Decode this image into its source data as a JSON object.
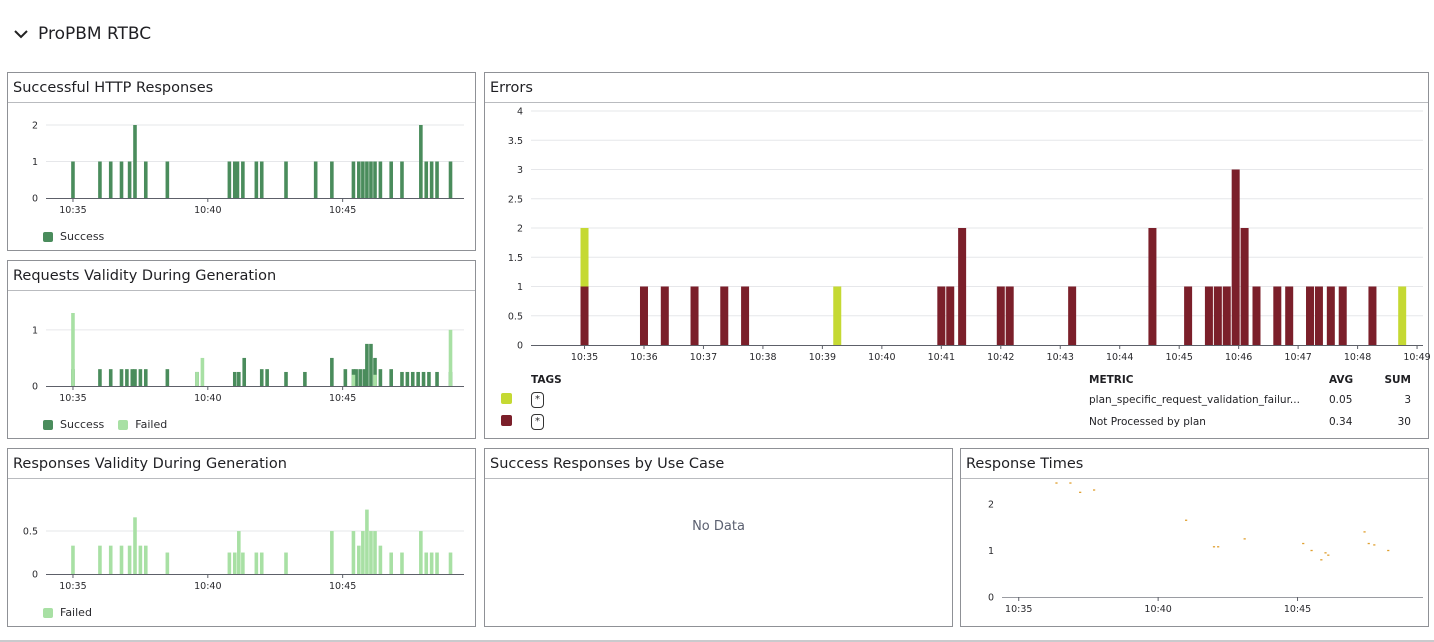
{
  "group": {
    "title": "ProPBM RTBC"
  },
  "widgets": {
    "http": {
      "title": "Successful HTTP Responses",
      "legend": [
        {
          "label": "Success",
          "color": "#4a8c5c"
        }
      ]
    },
    "req_validity": {
      "title": "Requests Validity During Generation",
      "legend": [
        {
          "label": "Success",
          "color": "#4a8c5c"
        },
        {
          "label": "Failed",
          "color": "#a8e0a4"
        }
      ]
    },
    "resp_validity": {
      "title": "Responses Validity During Generation",
      "legend": [
        {
          "label": "Failed",
          "color": "#a8e0a4"
        }
      ]
    },
    "errors": {
      "title": "Errors",
      "table": {
        "headers": {
          "tags": "TAGS",
          "metric": "METRIC",
          "avg": "AVG",
          "sum": "SUM"
        },
        "rows": [
          {
            "color": "#c5d933",
            "tag": "*",
            "metric": "plan_specific_request_validation_failur...",
            "avg": "0.05",
            "sum": "3"
          },
          {
            "color": "#7b1f2a",
            "tag": "*",
            "metric": "Not Processed by plan",
            "avg": "0.34",
            "sum": "30"
          }
        ]
      }
    },
    "use_case": {
      "title": "Success Responses by Use Case",
      "empty_text": "No Data"
    },
    "resp_times": {
      "title": "Response Times"
    }
  },
  "chart_data": [
    {
      "id": "http",
      "type": "bar",
      "title": "Successful HTTP Responses",
      "x_unit": "minutes (10:34–10:49)",
      "x_ticks": [
        {
          "x": 35,
          "label": "10:35"
        },
        {
          "x": 40,
          "label": "10:40"
        },
        {
          "x": 45,
          "label": "10:45"
        }
      ],
      "ylim": [
        0,
        2
      ],
      "y_ticks": [
        "0",
        "1",
        "2"
      ],
      "grid": true,
      "legend_position": "bottom-left",
      "series": [
        {
          "name": "Success",
          "color": "#4a8c5c",
          "x": [
            35.0,
            36.0,
            36.4,
            36.8,
            37.1,
            37.3,
            37.7,
            38.5,
            40.8,
            41.0,
            41.1,
            41.3,
            41.8,
            42.0,
            42.9,
            44.0,
            44.6,
            45.4,
            45.6,
            45.75,
            45.9,
            46.05,
            46.2,
            46.4,
            46.8,
            47.2,
            47.9,
            48.1,
            48.3,
            48.5,
            49.0
          ],
          "values": [
            1,
            1,
            1,
            1,
            1,
            2,
            1,
            1,
            1,
            1,
            1,
            1,
            1,
            1,
            1,
            1,
            1,
            1,
            1,
            1,
            1,
            1,
            1,
            1,
            1,
            1,
            2,
            1,
            1,
            1,
            1
          ]
        }
      ]
    },
    {
      "id": "req_validity",
      "type": "bar",
      "title": "Requests Validity During Generation",
      "x_unit": "minutes (10:34–10:49)",
      "x_ticks": [
        {
          "x": 35,
          "label": "10:35"
        },
        {
          "x": 40,
          "label": "10:40"
        },
        {
          "x": 45,
          "label": "10:45"
        }
      ],
      "ylim": [
        0,
        1.3
      ],
      "y_ticks": [
        "0",
        "1"
      ],
      "grid": true,
      "legend_position": "bottom-left",
      "series": [
        {
          "name": "Success",
          "color": "#4a8c5c",
          "x": [
            35.0,
            36.0,
            36.4,
            36.8,
            37.0,
            37.2,
            37.3,
            37.5,
            37.7,
            38.5,
            39.6,
            41.0,
            41.15,
            41.35,
            42.0,
            42.2,
            42.9,
            43.6,
            44.6,
            45.1,
            45.4,
            45.5,
            45.65,
            45.8,
            45.9,
            46.05,
            46.2,
            46.4,
            46.8,
            47.2,
            47.4,
            47.6,
            47.8,
            48.0,
            48.2,
            48.5,
            49.0
          ],
          "values": [
            0.3,
            0.3,
            0.3,
            0.3,
            0.3,
            0.3,
            0.3,
            0.3,
            0.3,
            0.3,
            0.25,
            0.25,
            0.25,
            0.5,
            0.3,
            0.3,
            0.25,
            0.25,
            0.5,
            0.3,
            0.3,
            0.3,
            0.3,
            0.3,
            0.75,
            0.75,
            0.5,
            0.3,
            0.3,
            0.25,
            0.25,
            0.25,
            0.25,
            0.25,
            0.25,
            0.25,
            0.25
          ]
        },
        {
          "name": "Failed",
          "color": "#a8e0a4",
          "x": [
            35.0,
            39.6,
            39.8,
            45.4,
            46.2,
            49.0
          ],
          "values": [
            1.3,
            0.25,
            0.5,
            0.2,
            0.2,
            1.0
          ]
        }
      ]
    },
    {
      "id": "resp_validity",
      "type": "bar",
      "title": "Responses Validity During Generation",
      "x_unit": "minutes (10:34–10:49)",
      "x_ticks": [
        {
          "x": 35,
          "label": "10:35"
        },
        {
          "x": 40,
          "label": "10:40"
        },
        {
          "x": 45,
          "label": "10:45"
        }
      ],
      "ylim": [
        0,
        0.85
      ],
      "y_ticks": [
        "0",
        "0.5"
      ],
      "grid": true,
      "legend_position": "bottom-left",
      "series": [
        {
          "name": "Failed",
          "color": "#a8e0a4",
          "x": [
            35.0,
            36.0,
            36.4,
            36.8,
            37.1,
            37.3,
            37.5,
            37.7,
            38.5,
            40.8,
            41.0,
            41.15,
            41.3,
            41.8,
            42.0,
            42.9,
            44.6,
            45.4,
            45.6,
            45.75,
            45.9,
            46.05,
            46.2,
            46.4,
            46.8,
            47.2,
            47.9,
            48.1,
            48.3,
            48.5,
            49.0
          ],
          "values": [
            0.33,
            0.33,
            0.33,
            0.33,
            0.33,
            0.66,
            0.33,
            0.33,
            0.25,
            0.25,
            0.25,
            0.5,
            0.25,
            0.25,
            0.25,
            0.25,
            0.5,
            0.5,
            0.33,
            0.5,
            0.75,
            0.5,
            0.5,
            0.33,
            0.25,
            0.25,
            0.5,
            0.25,
            0.25,
            0.25,
            0.25
          ]
        }
      ]
    },
    {
      "id": "errors",
      "type": "bar",
      "title": "Errors",
      "x_unit": "minutes (10:34.1–10:49)",
      "x_ticks": [
        {
          "x": 35,
          "label": "10:35"
        },
        {
          "x": 36,
          "label": "10:36"
        },
        {
          "x": 37,
          "label": "10:37"
        },
        {
          "x": 38,
          "label": "10:38"
        },
        {
          "x": 39,
          "label": "10:39"
        },
        {
          "x": 40,
          "label": "10:40"
        },
        {
          "x": 41,
          "label": "10:41"
        },
        {
          "x": 42,
          "label": "10:42"
        },
        {
          "x": 43,
          "label": "10:43"
        },
        {
          "x": 44,
          "label": "10:44"
        },
        {
          "x": 45,
          "label": "10:45"
        },
        {
          "x": 46,
          "label": "10:46"
        },
        {
          "x": 47,
          "label": "10:47"
        },
        {
          "x": 48,
          "label": "10:48"
        },
        {
          "x": 49,
          "label": "10:49"
        }
      ],
      "ylim": [
        0,
        4
      ],
      "y_ticks": [
        "0",
        "0.5",
        "1",
        "1.5",
        "2",
        "2.5",
        "3",
        "3.5",
        "4"
      ],
      "grid": true,
      "legend_position": "bottom",
      "stacked": true,
      "series": [
        {
          "name": "Not Processed by plan",
          "color": "#7b1f2a",
          "x": [
            35.0,
            36.0,
            36.35,
            36.85,
            37.35,
            37.7,
            41.0,
            41.15,
            41.35,
            42.0,
            42.15,
            43.2,
            44.55,
            45.15,
            45.5,
            45.65,
            45.8,
            45.95,
            46.1,
            46.3,
            46.65,
            46.85,
            47.2,
            47.35,
            47.55,
            47.75,
            48.25
          ],
          "values": [
            1,
            1,
            1,
            1,
            1,
            1,
            1,
            1,
            2,
            1,
            1,
            1,
            2,
            1,
            1,
            1,
            1,
            3,
            2,
            1,
            1,
            1,
            1,
            1,
            1,
            1,
            1
          ]
        },
        {
          "name": "plan_specific_request_validation_failur...",
          "color": "#c5d933",
          "x": [
            35.0,
            39.25,
            48.75
          ],
          "values": [
            1,
            1,
            1
          ]
        }
      ]
    },
    {
      "id": "resp_times",
      "type": "scatter",
      "title": "Response Times",
      "x_unit": "minutes (10:34–10:49)",
      "x_ticks": [
        {
          "x": 35,
          "label": "10:35"
        },
        {
          "x": 40,
          "label": "10:40"
        },
        {
          "x": 45,
          "label": "10:45"
        }
      ],
      "ylim": [
        0,
        2.6
      ],
      "y_ticks": [
        "0",
        "1",
        "2"
      ],
      "grid": false,
      "series": [
        {
          "color": "#e0a030",
          "points": [
            [
              36.35,
              2.45
            ],
            [
              36.85,
              2.45
            ],
            [
              37.2,
              2.25
            ],
            [
              37.7,
              2.3
            ],
            [
              41.0,
              1.65
            ],
            [
              42.0,
              1.08
            ],
            [
              42.15,
              1.08
            ],
            [
              43.1,
              1.25
            ],
            [
              45.2,
              1.15
            ],
            [
              45.5,
              1.0
            ],
            [
              45.85,
              0.8
            ],
            [
              46.0,
              0.95
            ],
            [
              46.1,
              0.9
            ],
            [
              47.4,
              1.4
            ],
            [
              47.55,
              1.15
            ],
            [
              47.75,
              1.12
            ],
            [
              48.25,
              1.0
            ]
          ]
        }
      ]
    }
  ]
}
